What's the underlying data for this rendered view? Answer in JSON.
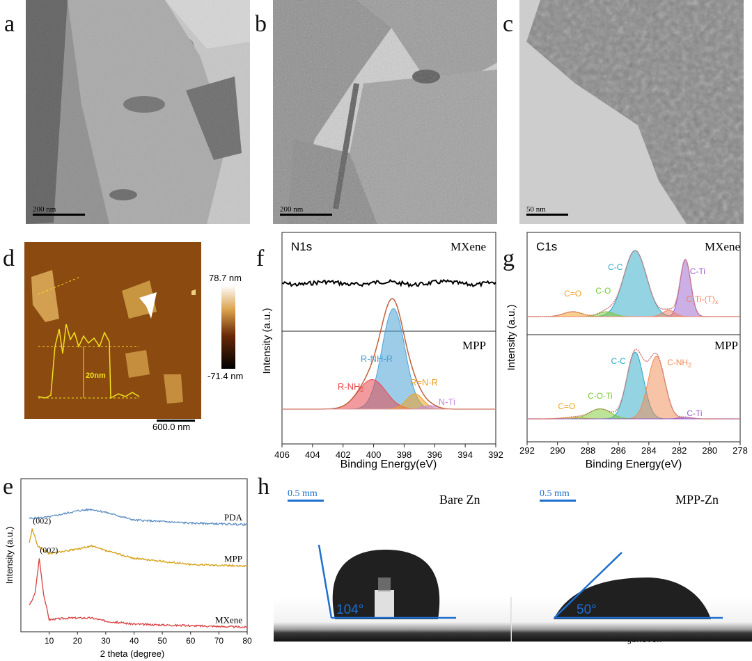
{
  "panel_labels": {
    "a": "a",
    "b": "b",
    "c": "c",
    "d": "d",
    "e": "e",
    "f": "f",
    "g": "g",
    "h": "h"
  },
  "tem": {
    "a": {
      "scalebar": "200 nm"
    },
    "b": {
      "scalebar": "200 nm"
    },
    "c": {
      "scalebar": "50 nm"
    }
  },
  "afm": {
    "colorbar_max": "78.7 nm",
    "colorbar_min": "-71.4 nm",
    "scalebar": "600.0 nm",
    "height_label": "20nm",
    "colors": {
      "bg": "#8a4a10",
      "flake": "#d9a04a",
      "profile": "#f2e11a"
    }
  },
  "xps_n1s": {
    "title": "N1s",
    "top_label": "MXene",
    "bottom_label": "MPP",
    "ylabel": "Intensity (a.u.)",
    "xlabel": "Binding Energy(eV)",
    "xticks": [
      "406",
      "404",
      "402",
      "400",
      "398",
      "396",
      "394",
      "392"
    ],
    "peaks": [
      {
        "name": "R-NH-R",
        "center": 398.7,
        "height": 0.85,
        "color": "#4aa3d6"
      },
      {
        "name": "R-NH",
        "sub": "2",
        "center": 400.1,
        "height": 0.25,
        "color": "#e8484f"
      },
      {
        "name": "R=N-R",
        "center": 397.3,
        "height": 0.13,
        "color": "#f0a020"
      },
      {
        "name": "N-Ti",
        "center": 396.3,
        "height": 0.03,
        "color": "#c48adf"
      }
    ]
  },
  "xps_c1s": {
    "title": "C1s",
    "top_label": "MXene",
    "bottom_label": "MPP",
    "ylabel": "Intensity (a.u.)",
    "xlabel": "Binding Energy(eV)",
    "xticks": [
      "292",
      "290",
      "288",
      "286",
      "284",
      "282",
      "280",
      "278"
    ],
    "mxene_peaks": [
      {
        "name": "C-C",
        "center": 284.9,
        "height": 0.95,
        "color": "#2aa7c6"
      },
      {
        "name": "C-Ti",
        "center": 281.6,
        "height": 0.82,
        "color": "#9a5fc9"
      },
      {
        "name": "C=O",
        "center": 289.0,
        "height": 0.07,
        "color": "#f0a020"
      },
      {
        "name": "C-O",
        "center": 286.8,
        "height": 0.07,
        "color": "#7cc832"
      },
      {
        "name": "C-Ti-(T)",
        "sub": "x",
        "center": 282.7,
        "height": 0.09,
        "color": "#f08060"
      }
    ],
    "mpp_peaks": [
      {
        "name": "C-C",
        "center": 284.9,
        "height": 0.8,
        "color": "#2aa7c6"
      },
      {
        "name": "C-NH",
        "sub": "2",
        "center": 283.5,
        "height": 0.75,
        "color": "#f08a50"
      },
      {
        "name": "C=O",
        "center": 289.0,
        "height": 0.02,
        "color": "#f0a020"
      },
      {
        "name": "C-O-Ti",
        "center": 287.2,
        "height": 0.12,
        "color": "#7cc832"
      },
      {
        "name": "C-Ti",
        "center": 281.6,
        "height": 0.02,
        "color": "#9a5fc9"
      }
    ]
  },
  "chart_data": {
    "type": "line",
    "title": "",
    "xlabel": "2 theta (degree)",
    "ylabel": "Intensity (a.u.)",
    "xlim": [
      0,
      80
    ],
    "xticks": [
      "10",
      "20",
      "30",
      "40",
      "50",
      "60",
      "70",
      "80"
    ],
    "series": [
      {
        "name": "PDA",
        "color": "#5b8dc2",
        "annotation": "",
        "x": [
          3,
          10,
          20,
          25,
          30,
          40,
          60,
          80
        ],
        "y": [
          0.74,
          0.75,
          0.79,
          0.8,
          0.78,
          0.73,
          0.71,
          0.7
        ]
      },
      {
        "name": "MPP",
        "color": "#d4a017",
        "annotation": "(002)",
        "x": [
          3,
          4,
          6,
          10,
          20,
          25,
          30,
          40,
          60,
          80
        ],
        "y": [
          0.58,
          0.67,
          0.56,
          0.51,
          0.54,
          0.56,
          0.53,
          0.48,
          0.44,
          0.43
        ]
      },
      {
        "name": "MXene",
        "color": "#d84040",
        "annotation": "(002)",
        "x": [
          3,
          5,
          6.5,
          8,
          10,
          17,
          25,
          30,
          40,
          60,
          80
        ],
        "y": [
          0.17,
          0.25,
          0.48,
          0.25,
          0.08,
          0.09,
          0.09,
          0.07,
          0.05,
          0.04,
          0.03
        ]
      }
    ]
  },
  "contact_angle": {
    "left": {
      "title": "Bare Zn",
      "scalebar": "0.5 mm",
      "angle": "104°"
    },
    "right": {
      "title": "MPP-Zn",
      "scalebar": "0.5 mm",
      "angle": "50°"
    },
    "line_color": "#1e6fd0"
  },
  "watermark": "gbx8.cn"
}
